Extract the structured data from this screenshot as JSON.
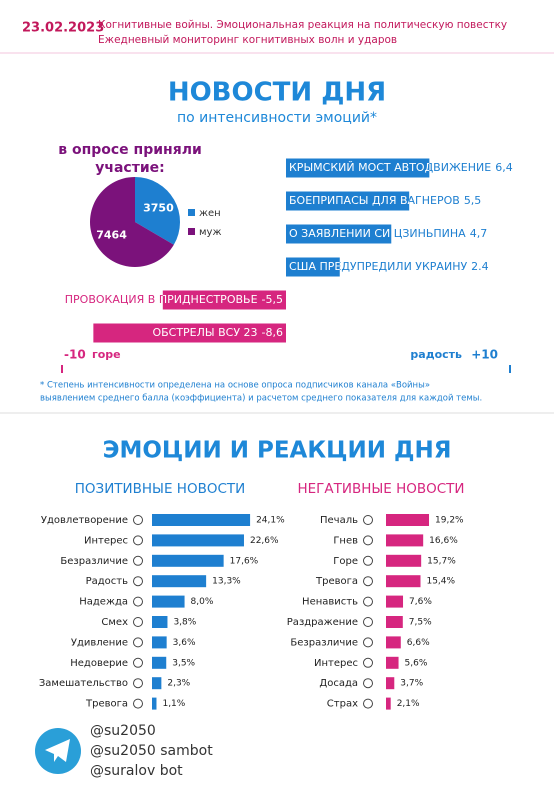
{
  "header": {
    "date": "23.02.2023",
    "line1": "Когнитивные войны. Эмоциональная реакция на политическую повестку",
    "line2": "Ежедневный мониторинг когнитивных волн и ударов"
  },
  "section1": {
    "title": "НОВОСТИ ДНЯ",
    "subtitle": "по интенсивности эмоций*"
  },
  "chart_data": [
    {
      "type": "pie",
      "title": [
        "в опросе приняли",
        "участие:"
      ],
      "categories": [
        "жен",
        "муж"
      ],
      "values": [
        3750,
        7464
      ],
      "colors": [
        "#1e7fd0",
        "#7b127b"
      ]
    },
    {
      "type": "diverging_bar",
      "categories": [
        "КРЫМСКИЙ МОСТ АВТОДВИЖЕНИЕ",
        "БОЕПРИПАСЫ ДЛЯ ВАГНЕРОВ",
        "О ЗАЯВЛЕНИИ СИ ЦЗИНЬПИНА",
        "США ПРЕДУПРЕДИЛИ УКРАИНУ",
        "ПРОВОКАЦИЯ В ПРИДНЕСТРОВЬЕ",
        "ОБСТРЕЛЫ ВСУ 23"
      ],
      "values": [
        6.4,
        5.5,
        4.7,
        2.4,
        -5.5,
        -8.6
      ],
      "value_labels": [
        "6,4",
        "5,5",
        "4,7",
        "2.4",
        "-5,5",
        "-8,6"
      ],
      "xlim": [
        -10,
        10
      ],
      "xticks": [
        -10,
        {
          "value": 10,
          "label": "+10"
        }
      ],
      "axis_labels": {
        "negative": "горе",
        "positive": "радость"
      },
      "colors": {
        "positive": "#1e7fd0",
        "negative": "#d6267f"
      }
    },
    {
      "type": "hbar",
      "title": "ПОЗИТИВНЫЕ НОВОСТИ",
      "color": "#1e7fd0",
      "categories": [
        "Удовлетворение",
        "Интерес",
        "Безразличие",
        "Радость",
        "Надежда",
        "Смех",
        "Удивление",
        "Недоверие",
        "Замешательство",
        "Тревога"
      ],
      "values": [
        24.1,
        22.6,
        17.6,
        13.3,
        8.0,
        3.8,
        3.6,
        3.5,
        2.3,
        1.1
      ],
      "value_labels": [
        "24,1%",
        "22,6%",
        "17,6%",
        "13,3%",
        "8,0%",
        "3,8%",
        "3,6%",
        "3,5%",
        "2,3%",
        "1,1%"
      ]
    },
    {
      "type": "hbar",
      "title": "НЕГАТИВНЫЕ НОВОСТИ",
      "color": "#d6267f",
      "categories": [
        "Печаль",
        "Гнев",
        "Горе",
        "Тревога",
        "Ненависть",
        "Раздражение",
        "Безразличие",
        "Интерес",
        "Досада",
        "Страх"
      ],
      "values": [
        19.2,
        16.6,
        15.7,
        15.4,
        7.6,
        7.5,
        6.6,
        5.6,
        3.7,
        2.1
      ],
      "value_labels": [
        "19,2%",
        "16,6%",
        "15,7%",
        "15,4%",
        "7,6%",
        "7,5%",
        "6,6%",
        "5,6%",
        "3,7%",
        "2,1%"
      ]
    }
  ],
  "footnote": [
    "* Степень интенсивности определена на основе опроса подписчиков канала «Войны»",
    "выявлением среднего балла (коэффициента) и расчетом среднего показателя для каждой темы."
  ],
  "section2": {
    "title": "ЭМОЦИИ И РЕАКЦИИ ДНЯ"
  },
  "footer": {
    "handles": [
      "@su2050",
      "@su2050 sambot",
      "@suralov bot"
    ]
  }
}
